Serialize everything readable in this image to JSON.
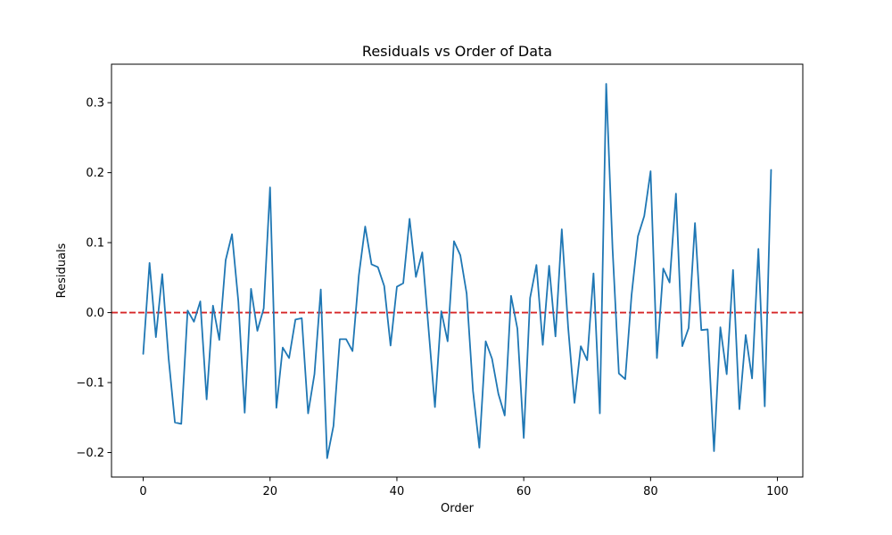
{
  "chart_data": {
    "type": "line",
    "title": "Residuals vs Order of Data",
    "xlabel": "Order",
    "ylabel": "Residuals",
    "xlim": [
      -5,
      104
    ],
    "ylim": [
      -0.235,
      0.355
    ],
    "xticks": [
      0,
      20,
      40,
      60,
      80,
      100
    ],
    "xtick_labels": [
      "0",
      "20",
      "40",
      "60",
      "80",
      "100"
    ],
    "yticks": [
      -0.2,
      -0.1,
      0.0,
      0.1,
      0.2,
      0.3
    ],
    "ytick_labels": [
      "−0.2",
      "−0.1",
      "0.0",
      "0.1",
      "0.2",
      "0.3"
    ],
    "grid": false,
    "reference_line": {
      "y": 0.0,
      "color": "#d62728",
      "style": "dashed"
    },
    "series": [
      {
        "color": "#1f77b4",
        "x": [
          0,
          1,
          2,
          3,
          4,
          5,
          6,
          7,
          8,
          9,
          10,
          11,
          12,
          13,
          14,
          15,
          16,
          17,
          18,
          19,
          20,
          21,
          22,
          23,
          24,
          25,
          26,
          27,
          28,
          29,
          30,
          31,
          32,
          33,
          34,
          35,
          36,
          37,
          38,
          39,
          40,
          41,
          42,
          43,
          44,
          45,
          46,
          47,
          48,
          49,
          50,
          51,
          52,
          53,
          54,
          55,
          56,
          57,
          58,
          59,
          60,
          61,
          62,
          63,
          64,
          65,
          66,
          67,
          68,
          69,
          70,
          71,
          72,
          73,
          74,
          75,
          76,
          77,
          78,
          79,
          80,
          81,
          82,
          83,
          84,
          85,
          86,
          87,
          88,
          89,
          90,
          91,
          92,
          93,
          94,
          95,
          96,
          97,
          98,
          99
        ],
        "y": [
          -0.059,
          0.071,
          -0.035,
          0.055,
          -0.065,
          -0.157,
          -0.159,
          0.003,
          -0.013,
          0.016,
          -0.124,
          0.01,
          -0.039,
          0.075,
          0.112,
          0.016,
          -0.143,
          0.034,
          -0.026,
          0.006,
          0.179,
          -0.136,
          -0.05,
          -0.065,
          -0.01,
          -0.008,
          -0.144,
          -0.088,
          0.033,
          -0.208,
          -0.162,
          -0.038,
          -0.038,
          -0.055,
          0.053,
          0.123,
          0.069,
          0.065,
          0.038,
          -0.047,
          0.037,
          0.042,
          0.134,
          0.051,
          0.086,
          -0.024,
          -0.135,
          0.002,
          -0.041,
          0.102,
          0.082,
          0.027,
          -0.112,
          -0.193,
          -0.041,
          -0.066,
          -0.116,
          -0.147,
          0.024,
          -0.023,
          -0.179,
          0.021,
          0.068,
          -0.046,
          0.067,
          -0.034,
          0.119,
          -0.021,
          -0.129,
          -0.048,
          -0.068,
          0.056,
          -0.144,
          0.327,
          0.092,
          -0.087,
          -0.095,
          0.025,
          0.109,
          0.138,
          0.202,
          -0.065,
          0.063,
          0.043,
          0.17,
          -0.048,
          -0.022,
          0.128,
          -0.025,
          -0.024,
          -0.198,
          -0.021,
          -0.088,
          0.061,
          -0.138,
          -0.032,
          -0.094,
          0.091,
          -0.134,
          0.204
        ]
      }
    ]
  }
}
